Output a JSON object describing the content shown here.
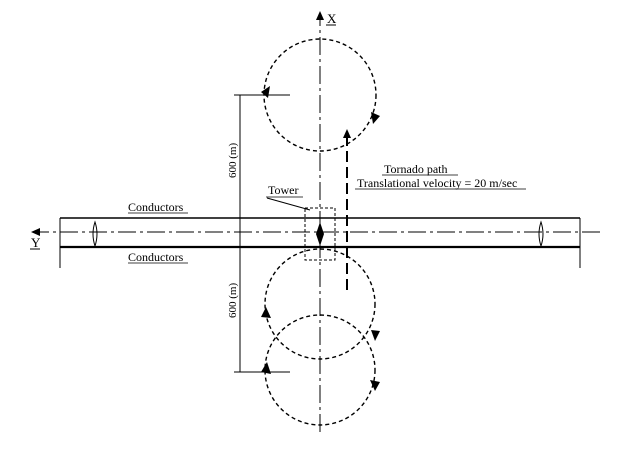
{
  "axes": {
    "x_label": "X",
    "y_label": "Y"
  },
  "labels": {
    "conductors_top": "Conductors",
    "conductors_bottom": "Conductors",
    "tower": "Tower",
    "tornado_path_line1": "Tornado path",
    "tornado_path_line2": "Translational velocity = 20 m/sec",
    "dim_upper": "600 (m)",
    "dim_lower": "600 (m)"
  }
}
